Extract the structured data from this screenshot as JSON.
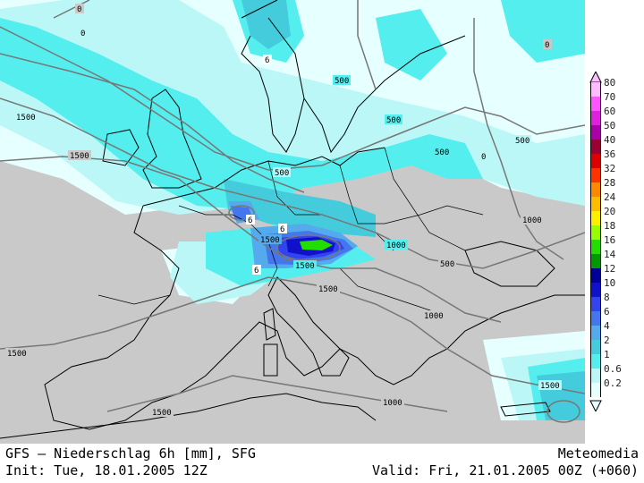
{
  "footer": {
    "title": "GFS – Niederschlag 6h [mm], SFG",
    "provider": "Meteomedia",
    "init": "Init: Tue, 18.01.2005 12Z",
    "valid": "Valid: Fri, 21.01.2005 00Z (+060)"
  },
  "legend": {
    "levels": [
      {
        "label": "80",
        "color": "#ffbbff"
      },
      {
        "label": "70",
        "color": "#ff55ff"
      },
      {
        "label": "60",
        "color": "#dd22dd"
      },
      {
        "label": "50",
        "color": "#aa00aa"
      },
      {
        "label": "40",
        "color": "#990033"
      },
      {
        "label": "36",
        "color": "#dd0000"
      },
      {
        "label": "32",
        "color": "#ff3300"
      },
      {
        "label": "28",
        "color": "#ff8800"
      },
      {
        "label": "24",
        "color": "#ffbb00"
      },
      {
        "label": "20",
        "color": "#ffee00"
      },
      {
        "label": "18",
        "color": "#99ff00"
      },
      {
        "label": "16",
        "color": "#22dd00"
      },
      {
        "label": "14",
        "color": "#009900"
      },
      {
        "label": "12",
        "color": "#000099"
      },
      {
        "label": "10",
        "color": "#1111cc"
      },
      {
        "label": "8",
        "color": "#3344ee"
      },
      {
        "label": "6",
        "color": "#4477ee"
      },
      {
        "label": "4",
        "color": "#55aaee"
      },
      {
        "label": "2",
        "color": "#44ccdd"
      },
      {
        "label": "1",
        "color": "#55eeee"
      },
      {
        "label": "0.6",
        "color": "#bbf7f7"
      },
      {
        "label": "0.2",
        "color": "#e6ffff"
      }
    ]
  },
  "map": {
    "contour_labels": [
      {
        "id": "c1",
        "text": "0"
      },
      {
        "id": "c2",
        "text": "0"
      },
      {
        "id": "c3",
        "text": "1500"
      },
      {
        "id": "c4",
        "text": "1500"
      },
      {
        "id": "c5",
        "text": "500"
      },
      {
        "id": "c6",
        "text": "500"
      },
      {
        "id": "c7",
        "text": "500"
      },
      {
        "id": "c8",
        "text": "500"
      },
      {
        "id": "c9",
        "text": "500"
      },
      {
        "id": "c10",
        "text": "0"
      },
      {
        "id": "c11",
        "text": "1000"
      },
      {
        "id": "c12",
        "text": "1000"
      },
      {
        "id": "c13",
        "text": "500"
      },
      {
        "id": "c14",
        "text": "1500"
      },
      {
        "id": "c15",
        "text": "1500"
      },
      {
        "id": "c16",
        "text": "1500"
      },
      {
        "id": "c17",
        "text": "1000"
      },
      {
        "id": "c18",
        "text": "1500"
      },
      {
        "id": "c19",
        "text": "1500"
      },
      {
        "id": "c20",
        "text": "1000"
      },
      {
        "id": "c21",
        "text": "1500"
      },
      {
        "id": "c22",
        "text": "0"
      },
      {
        "id": "c23",
        "text": "6"
      },
      {
        "id": "c24",
        "text": "6"
      },
      {
        "id": "c25",
        "text": "6"
      },
      {
        "id": "c26",
        "text": "6"
      }
    ]
  }
}
